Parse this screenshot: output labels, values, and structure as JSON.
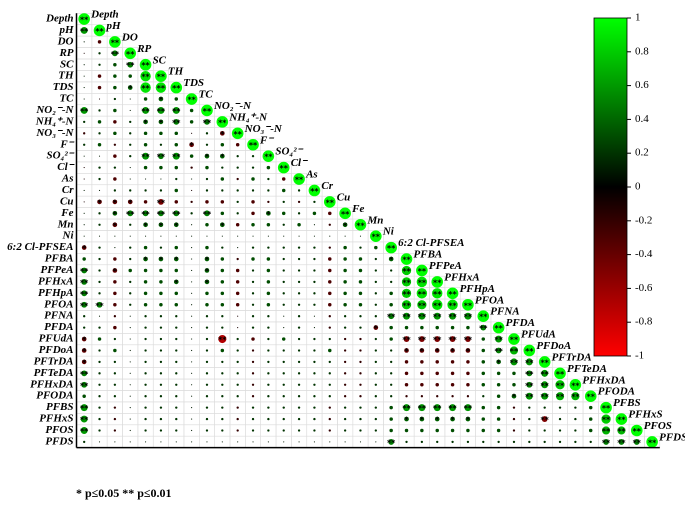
{
  "chart_data": {
    "type": "corrplot",
    "variables": [
      "Depth",
      "pH",
      "DO",
      "RP",
      "SC",
      "TH",
      "TDS",
      "TC",
      "NO₂⁻-N",
      "NH₄⁺-N",
      "NO₃⁻-N",
      "F⁻",
      "SO₄²⁻",
      "Cl⁻",
      "As",
      "Cr",
      "Cu",
      "Fe",
      "Mn",
      "Ni",
      "6:2 Cl-PFSEA",
      "PFBA",
      "PFPeA",
      "PFHxA",
      "PFHpA",
      "PFOA",
      "PFNA",
      "PFDA",
      "PFUdA",
      "PFDoA",
      "PFTrDA",
      "PFTeDA",
      "PFHxDA",
      "PFODA",
      "PFBS",
      "PFHxS",
      "PFOS",
      "PFDS"
    ],
    "matrix": [
      [
        1
      ],
      [
        0.6,
        1
      ],
      [
        0.1,
        -0.3,
        1
      ],
      [
        -0.1,
        0.2,
        0.5,
        1
      ],
      [
        0.1,
        0.2,
        0.3,
        0.5,
        1
      ],
      [
        0.1,
        -0.3,
        0.3,
        0.3,
        0.9,
        1
      ],
      [
        0.1,
        -0.3,
        0.3,
        0.4,
        0.9,
        0.9,
        1
      ],
      [
        0.1,
        -0.1,
        0.2,
        0.1,
        0.3,
        0.4,
        0.3,
        1
      ],
      [
        0.6,
        0.2,
        0.3,
        0.1,
        0.6,
        0.6,
        0.6,
        0.3,
        1
      ],
      [
        0.2,
        0.3,
        -0.3,
        0.2,
        0.4,
        0.4,
        0.5,
        0.3,
        0.5,
        1
      ],
      [
        -0.2,
        0.2,
        0.3,
        0.2,
        0.3,
        0.3,
        0.3,
        -0.1,
        0.2,
        -0.4,
        1
      ],
      [
        0.2,
        0.3,
        -0.2,
        0.2,
        0.3,
        0.2,
        0.3,
        -0.4,
        0.2,
        0.3,
        -0.3,
        1
      ],
      [
        0.1,
        0.1,
        -0.3,
        0.2,
        0.6,
        0.5,
        0.6,
        0.3,
        0.4,
        0.4,
        0.2,
        0.2,
        1
      ],
      [
        -0.1,
        0.2,
        0.2,
        0.1,
        0.3,
        0.3,
        0.3,
        -0.2,
        0.3,
        0.2,
        0.2,
        0.2,
        0.3,
        1
      ],
      [
        -0.1,
        0.2,
        -0.3,
        0.1,
        0.1,
        0.1,
        0.2,
        0.1,
        0.2,
        0.3,
        -0.2,
        0.3,
        0.2,
        -0.3,
        1
      ],
      [
        0.1,
        0.1,
        0.2,
        0.2,
        0.2,
        0.2,
        0.3,
        -0.1,
        0.2,
        0.2,
        0.2,
        0.2,
        0.2,
        0.3,
        0.2,
        1
      ],
      [
        -0.1,
        -0.4,
        -0.4,
        -0.4,
        -0.3,
        -0.5,
        -0.3,
        -0.2,
        -0.3,
        -0.3,
        0.2,
        -0.3,
        -0.2,
        0.2,
        -0.2,
        0.2,
        1
      ],
      [
        0.1,
        0.2,
        0.4,
        0.5,
        0.5,
        0.5,
        0.5,
        0.2,
        0.5,
        0.3,
        0.2,
        -0.3,
        0.4,
        0.3,
        0.2,
        0.3,
        -0.3,
        1
      ],
      [
        0.1,
        0.2,
        -0.4,
        0.2,
        0.4,
        0.4,
        0.4,
        0.1,
        0.3,
        0.4,
        -0.3,
        0.3,
        0.3,
        0.2,
        0.3,
        0.1,
        -0.2,
        0.4,
        1
      ],
      [
        0.1,
        0.1,
        0.1,
        0.1,
        0.1,
        0.1,
        0.1,
        0.1,
        0.1,
        0.1,
        0.1,
        0.1,
        0.1,
        0.1,
        0.1,
        0.1,
        0.1,
        0.1,
        0.1,
        1
      ],
      [
        -0.4,
        0.2,
        0.1,
        0.2,
        0.3,
        0.2,
        0.3,
        0.1,
        0.3,
        0.2,
        0.1,
        0.2,
        0.2,
        0.2,
        0.2,
        0.2,
        -0.2,
        0.3,
        0.2,
        0.3,
        1
      ],
      [
        0.3,
        0.2,
        -0.3,
        0.2,
        0.4,
        0.4,
        0.4,
        0.1,
        0.4,
        0.3,
        -0.2,
        0.3,
        0.3,
        0.2,
        0.2,
        0.2,
        -0.3,
        0.3,
        0.3,
        0.2,
        0.4,
        1
      ],
      [
        0.5,
        0.2,
        -0.4,
        0.3,
        0.3,
        0.3,
        0.3,
        0.1,
        0.4,
        0.3,
        -0.3,
        0.2,
        0.3,
        0.2,
        0.2,
        0.2,
        -0.3,
        0.3,
        0.3,
        0.2,
        0.2,
        0.8,
        1
      ],
      [
        0.5,
        0.2,
        -0.3,
        0.2,
        0.3,
        0.3,
        0.4,
        0.1,
        0.4,
        0.3,
        -0.3,
        0.2,
        0.3,
        0.2,
        0.2,
        0.2,
        -0.3,
        0.3,
        0.3,
        0.2,
        0.2,
        0.8,
        0.9,
        1
      ],
      [
        0.5,
        0.2,
        -0.3,
        0.2,
        0.3,
        0.3,
        0.3,
        0.1,
        0.3,
        0.3,
        -0.3,
        0.2,
        0.3,
        0.2,
        0.2,
        0.2,
        -0.3,
        0.3,
        0.3,
        0.2,
        0.3,
        0.8,
        0.9,
        0.9,
        1
      ],
      [
        0.5,
        0.5,
        -0.3,
        0.2,
        0.3,
        0.3,
        0.3,
        0.1,
        0.3,
        0.3,
        -0.3,
        0.2,
        0.3,
        0.2,
        0.2,
        0.2,
        -0.3,
        0.3,
        0.3,
        0.2,
        0.3,
        0.8,
        0.8,
        0.9,
        0.9,
        1
      ],
      [
        0.2,
        0.1,
        -0.2,
        0.1,
        0.2,
        0.2,
        0.2,
        0.1,
        0.2,
        0.2,
        -0.1,
        0.2,
        0.2,
        0.1,
        0.2,
        0.1,
        -0.2,
        0.2,
        0.2,
        0.2,
        0.5,
        0.6,
        0.6,
        0.6,
        0.6,
        0.6,
        1
      ],
      [
        0.2,
        0.2,
        -0.3,
        0.1,
        0.2,
        0.2,
        0.2,
        0.1,
        0.2,
        0.2,
        -0.1,
        0.2,
        0.2,
        0.1,
        0.2,
        0.1,
        -0.2,
        0.2,
        0.2,
        -0.4,
        0.3,
        0.3,
        0.3,
        0.3,
        0.3,
        0.3,
        0.5,
        1
      ],
      [
        -0.4,
        0.3,
        0.2,
        0.1,
        0.2,
        0.2,
        0.2,
        0.1,
        0.2,
        -0.7,
        0.2,
        -0.3,
        0.2,
        0.3,
        0.2,
        0.2,
        0.2,
        -0.2,
        -0.2,
        0.2,
        0.3,
        -0.5,
        -0.5,
        -0.5,
        -0.5,
        -0.5,
        0.3,
        0.6,
        1
      ],
      [
        -0.4,
        0.2,
        0.3,
        0.1,
        0.2,
        0.2,
        0.2,
        0.1,
        0.2,
        0.3,
        0.2,
        -0.2,
        0.2,
        0.2,
        0.2,
        0.2,
        0.3,
        -0.2,
        -0.2,
        0.2,
        0.2,
        -0.4,
        -0.4,
        -0.4,
        -0.4,
        -0.4,
        0.3,
        0.5,
        0.7,
        1
      ],
      [
        -0.4,
        0.2,
        0.2,
        0.1,
        0.2,
        0.2,
        0.2,
        0.1,
        0.2,
        0.2,
        0.2,
        -0.2,
        0.2,
        0.2,
        0.2,
        0.2,
        0.2,
        -0.2,
        -0.2,
        0.2,
        0.2,
        -0.3,
        -0.3,
        -0.3,
        -0.3,
        -0.3,
        0.3,
        0.4,
        0.6,
        0.6,
        1
      ],
      [
        0.5,
        0.2,
        0.2,
        0.1,
        0.2,
        0.2,
        0.2,
        0.1,
        0.2,
        0.2,
        0.2,
        -0.2,
        0.2,
        0.2,
        0.2,
        0.2,
        0.2,
        -0.2,
        -0.2,
        0.2,
        0.2,
        -0.3,
        -0.3,
        -0.3,
        -0.3,
        -0.3,
        0.3,
        0.3,
        0.3,
        0.5,
        0.6,
        1
      ],
      [
        0.5,
        0.2,
        0.2,
        0.1,
        0.2,
        0.2,
        0.2,
        0.1,
        0.2,
        0.2,
        0.2,
        -0.2,
        0.2,
        0.2,
        0.2,
        0.2,
        0.2,
        -0.2,
        -0.2,
        0.2,
        0.2,
        -0.3,
        -0.3,
        -0.3,
        -0.3,
        -0.3,
        0.3,
        0.3,
        0.3,
        0.5,
        0.6,
        0.8,
        1
      ],
      [
        0.3,
        0.2,
        0.2,
        0.1,
        0.2,
        0.2,
        0.2,
        0.1,
        0.2,
        0.2,
        0.2,
        -0.2,
        0.2,
        0.2,
        0.2,
        0.2,
        0.2,
        -0.2,
        -0.2,
        0.2,
        0.2,
        -0.2,
        -0.2,
        -0.2,
        -0.2,
        -0.2,
        0.2,
        0.3,
        0.4,
        0.6,
        0.6,
        0.7,
        0.7,
        1
      ],
      [
        0.6,
        0.2,
        -0.2,
        0.1,
        0.2,
        0.2,
        0.2,
        0.1,
        0.2,
        0.2,
        -0.2,
        0.2,
        0.2,
        0.2,
        0.2,
        0.2,
        -0.2,
        0.2,
        0.2,
        0.2,
        0.3,
        0.6,
        0.6,
        0.6,
        0.6,
        0.6,
        0.3,
        0.3,
        -0.2,
        0.2,
        0.2,
        0.2,
        0.2,
        0.3,
        1
      ],
      [
        0.6,
        0.2,
        -0.2,
        0.1,
        0.2,
        0.2,
        0.2,
        0.1,
        0.2,
        0.2,
        -0.2,
        0.2,
        0.2,
        0.2,
        0.2,
        0.2,
        -0.2,
        0.2,
        0.2,
        0.2,
        0.3,
        0.4,
        0.4,
        0.4,
        0.4,
        0.4,
        0.3,
        0.3,
        -0.2,
        0.2,
        -0.5,
        0.2,
        0.2,
        0.3,
        0.8,
        1
      ],
      [
        0.6,
        0.2,
        -0.2,
        0.1,
        0.2,
        0.2,
        0.2,
        0.1,
        0.2,
        0.2,
        -0.2,
        0.2,
        0.2,
        0.2,
        0.2,
        0.2,
        -0.2,
        0.2,
        0.2,
        0.2,
        0.3,
        0.3,
        0.3,
        0.3,
        0.3,
        0.3,
        0.3,
        0.3,
        -0.2,
        0.2,
        0.2,
        0.2,
        0.2,
        0.3,
        0.7,
        0.7,
        1
      ],
      [
        0.2,
        0.1,
        0.1,
        0.1,
        0.1,
        0.1,
        0.1,
        0.1,
        0.1,
        0.1,
        0.1,
        0.1,
        0.1,
        0.1,
        0.1,
        0.1,
        0.1,
        0.1,
        0.1,
        0.1,
        0.5,
        0.2,
        0.2,
        0.2,
        0.2,
        0.2,
        0.2,
        0.2,
        0.2,
        0.2,
        0.2,
        0.2,
        0.2,
        0.2,
        0.5,
        0.5,
        0.5,
        1
      ]
    ],
    "stars": [
      {
        "0": "**"
      },
      {
        "0": "**",
        "1": "**"
      },
      {
        "2": "**"
      },
      {
        "2": "**",
        "3": "**"
      },
      {
        "3": "**",
        "4": "**"
      },
      {
        "4": "**",
        "5": "**"
      },
      {
        "3": "*",
        "4": "**",
        "5": "**",
        "6": "**"
      },
      {
        "5": "*",
        "7": "**"
      },
      {
        "0": "**",
        "4": "**",
        "5": "**",
        "6": "**",
        "8": "**"
      },
      {
        "4": "*",
        "5": "*",
        "6": "**",
        "8": "**",
        "9": "**"
      },
      {
        "9": "*",
        "10": "**"
      },
      {
        "7": "*",
        "11": "**"
      },
      {
        "4": "**",
        "5": "**",
        "6": "**",
        "8": "*",
        "9": "*",
        "12": "**"
      },
      {
        "13": "**"
      },
      {
        "14": "**"
      },
      {
        "15": "**"
      },
      {
        "1": "*",
        "2": "*",
        "3": "*",
        "5": "**",
        "16": "**"
      },
      {
        "2": "*",
        "3": "**",
        "4": "**",
        "5": "**",
        "6": "**",
        "8": "**",
        "12": "*",
        "17": "**"
      },
      {
        "2": "*",
        "4": "*",
        "5": "*",
        "6": "*",
        "9": "*",
        "17": "*",
        "18": "**"
      },
      {
        "19": "**"
      },
      {
        "0": "*",
        "20": "**"
      },
      {
        "4": "*",
        "5": "*",
        "6": "*",
        "8": "*",
        "20": "*",
        "21": "**"
      },
      {
        "0": "**",
        "2": "*",
        "8": "*",
        "21": "**",
        "22": "**"
      },
      {
        "0": "**",
        "6": "*",
        "8": "*",
        "21": "**",
        "22": "**",
        "23": "**"
      },
      {
        "0": "**",
        "21": "**",
        "22": "**",
        "23": "**",
        "24": "**"
      },
      {
        "0": "**",
        "1": "**",
        "21": "**",
        "22": "**",
        "23": "**",
        "24": "**",
        "25": "**"
      },
      {
        "20": "**",
        "21": "**",
        "22": "**",
        "23": "**",
        "24": "**",
        "25": "**",
        "26": "**"
      },
      {
        "19": "*",
        "26": "**",
        "27": "**"
      },
      {
        "0": "*",
        "9": "**",
        "21": "**",
        "22": "**",
        "23": "**",
        "24": "**",
        "25": "**",
        "27": "**",
        "28": "**"
      },
      {
        "0": "*",
        "21": "*",
        "22": "*",
        "23": "*",
        "24": "*",
        "25": "*",
        "27": "**",
        "28": "**",
        "29": "**"
      },
      {
        "0": "*",
        "27": "*",
        "28": "**",
        "29": "**",
        "30": "**"
      },
      {
        "0": "**",
        "29": "**",
        "30": "**",
        "31": "**"
      },
      {
        "0": "**",
        "29": "**",
        "30": "**",
        "31": "**",
        "32": "**"
      },
      {
        "28": "*",
        "29": "**",
        "30": "**",
        "31": "**",
        "32": "**",
        "33": "**"
      },
      {
        "0": "**",
        "21": "**",
        "22": "**",
        "23": "**",
        "24": "**",
        "25": "**",
        "34": "**"
      },
      {
        "0": "**",
        "21": "*",
        "22": "*",
        "23": "*",
        "24": "*",
        "25": "*",
        "30": "**",
        "34": "**",
        "35": "**"
      },
      {
        "0": "**",
        "34": "**",
        "35": "**",
        "36": "**"
      },
      {
        "20": "**",
        "34": "**",
        "35": "**",
        "36": "**",
        "37": "**"
      }
    ],
    "clim": [
      -1,
      1
    ],
    "cticks": [
      1,
      0.8,
      0.6,
      0.4,
      0.2,
      0,
      -0.2,
      -0.4,
      -0.6,
      -0.8,
      -1
    ],
    "colormap": [
      "#ff0000",
      "#000000",
      "#00ff00"
    ],
    "footnote": "* p≤0.05  ** p≤0.01"
  }
}
